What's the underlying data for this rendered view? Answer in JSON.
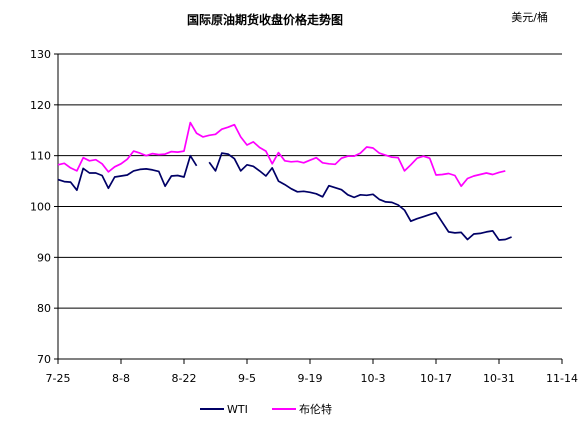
{
  "chart_data": {
    "type": "line",
    "title": "国际原油期货收盘价格走势图",
    "unit_label": "美元/桶",
    "xlabel": "",
    "ylabel": "",
    "ylim": [
      70,
      130
    ],
    "y_ticks": [
      70,
      80,
      90,
      100,
      110,
      120,
      130
    ],
    "grid": true,
    "legend_position": "bottom",
    "x_ticks": [
      {
        "index": 0,
        "label": "7-25"
      },
      {
        "index": 10,
        "label": "8-8"
      },
      {
        "index": 20,
        "label": "8-22"
      },
      {
        "index": 30,
        "label": "9-5"
      },
      {
        "index": 40,
        "label": "9-19"
      },
      {
        "index": 50,
        "label": "10-3"
      },
      {
        "index": 60,
        "label": "10-17"
      },
      {
        "index": 70,
        "label": "10-31"
      },
      {
        "index": 80,
        "label": "11-14"
      }
    ],
    "series": [
      {
        "name": "WTI",
        "color": "#000066",
        "values": [
          105.3,
          104.9,
          104.8,
          103.2,
          107.5,
          106.6,
          106.6,
          106.1,
          103.6,
          105.8,
          106.0,
          106.2,
          107.0,
          107.3,
          107.4,
          107.2,
          106.9,
          104.0,
          106.0,
          106.1,
          105.8,
          110.0,
          108.0,
          null,
          108.7,
          107.0,
          110.5,
          110.3,
          109.4,
          107.0,
          108.2,
          107.9,
          107.0,
          106.0,
          107.6,
          105.0,
          104.3,
          103.5,
          102.9,
          103.0,
          102.8,
          102.5,
          101.9,
          104.1,
          103.7,
          103.3,
          102.3,
          101.8,
          102.3,
          102.2,
          102.4,
          101.4,
          100.9,
          100.8,
          100.3,
          99.3,
          97.1,
          97.6,
          98.0,
          98.4,
          98.8,
          96.9,
          95.0,
          94.8,
          94.9,
          93.5,
          94.6,
          94.7,
          95.0,
          95.2,
          93.4,
          93.5,
          94.0
        ]
      },
      {
        "name": "布伦特",
        "color": "#ff00ff",
        "values": [
          108.2,
          108.5,
          107.6,
          107.0,
          109.6,
          109.0,
          109.2,
          108.4,
          106.8,
          107.8,
          108.4,
          109.3,
          110.9,
          110.5,
          110.0,
          110.4,
          110.2,
          110.3,
          110.8,
          110.7,
          110.9,
          116.5,
          114.4,
          113.7,
          114.0,
          114.2,
          115.2,
          115.6,
          116.1,
          113.7,
          112.1,
          112.7,
          111.6,
          110.9,
          108.4,
          110.6,
          109.0,
          108.8,
          108.9,
          108.6,
          109.1,
          109.6,
          108.6,
          108.4,
          108.3,
          109.5,
          109.9,
          109.9,
          110.5,
          111.7,
          111.5,
          110.5,
          110.1,
          109.7,
          109.6,
          107.0,
          108.2,
          109.5,
          109.9,
          109.5,
          106.2,
          106.3,
          106.5,
          106.1,
          104.0,
          105.5,
          106.0,
          106.3,
          106.6,
          106.3,
          106.7,
          107.0
        ]
      }
    ]
  }
}
